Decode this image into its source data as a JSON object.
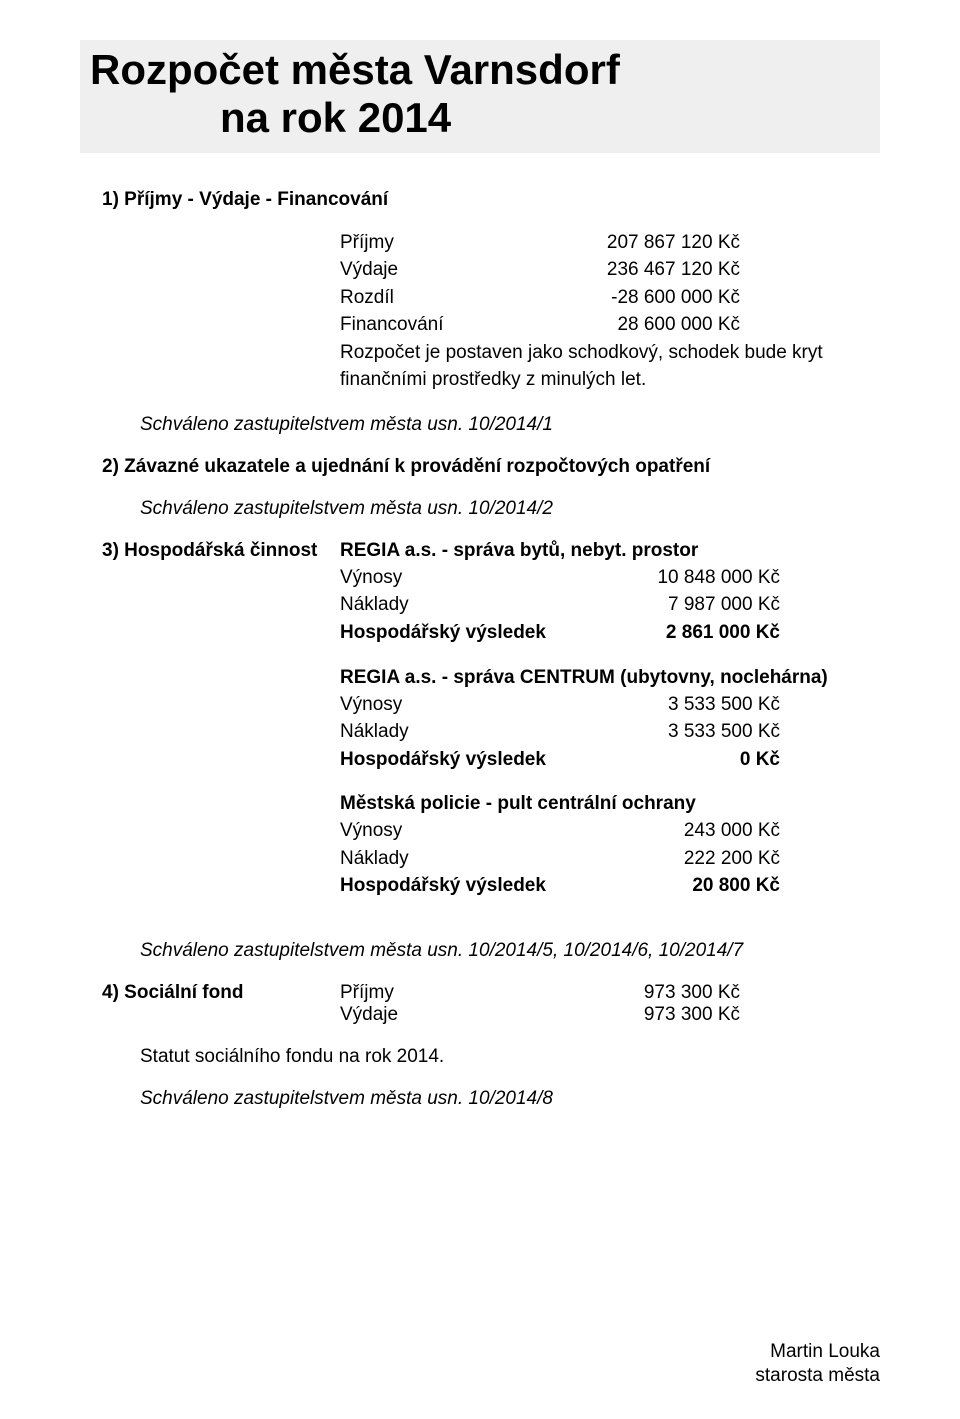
{
  "title": {
    "line1": "Rozpočet města Varnsdorf",
    "line2": "na rok 2014"
  },
  "section1": {
    "heading": "1)  Příjmy - Výdaje - Financování",
    "rows": [
      {
        "label": "Příjmy",
        "value": "207 867 120 Kč"
      },
      {
        "label": "Výdaje",
        "value": "236 467 120 Kč"
      },
      {
        "label": "Rozdíl",
        "value": "-28 600 000 Kč"
      },
      {
        "label": "Financování",
        "value": "28 600 000 Kč"
      }
    ],
    "note_line1": "Rozpočet je postaven jako schodkový, schodek bude kryt",
    "note_line2": "finančními  prostředky z minulých let.",
    "approval": "Schváleno zastupitelstvem města usn. 10/2014/1"
  },
  "section2": {
    "heading": "2)  Závazné ukazatele a ujednání k provádění rozpočtových opatření",
    "approval": "Schváleno zastupitelstvem města usn. 10/2014/2"
  },
  "section3": {
    "heading_left": "3)  Hospodářská činnost",
    "blocks": [
      {
        "title": "REGIA a.s. - správa bytů, nebyt. prostor",
        "rows": [
          {
            "label": "Výnosy",
            "value": "10 848 000 Kč",
            "bold": false
          },
          {
            "label": "Náklady",
            "value": "7 987 000 Kč",
            "bold": false
          },
          {
            "label": "Hospodářský výsledek",
            "value": "2 861 000 Kč",
            "bold": true
          }
        ]
      },
      {
        "title": "REGIA a.s. - správa CENTRUM (ubytovny, noclehárna)",
        "rows": [
          {
            "label": "Výnosy",
            "value": "3 533 500 Kč",
            "bold": false
          },
          {
            "label": "Náklady",
            "value": "3 533 500 Kč",
            "bold": false
          },
          {
            "label": "Hospodářský výsledek",
            "value": "0 Kč",
            "bold": true
          }
        ]
      },
      {
        "title": "Městská policie - pult centrální ochrany",
        "rows": [
          {
            "label": "Výnosy",
            "value": "243 000 Kč",
            "bold": false
          },
          {
            "label": "Náklady",
            "value": "222 200 Kč",
            "bold": false
          },
          {
            "label": "Hospodářský výsledek",
            "value": "20 800 Kč",
            "bold": true
          }
        ]
      }
    ],
    "approval": "Schváleno zastupitelstvem města usn. 10/2014/5, 10/2014/6, 10/2014/7"
  },
  "section4": {
    "heading_left": "4)  Sociální fond",
    "rows": [
      {
        "label": "Příjmy",
        "value": "973 300 Kč"
      },
      {
        "label": "Výdaje",
        "value": "973 300 Kč"
      }
    ],
    "note": "Statut sociálního fondu na rok 2014.",
    "approval": "Schváleno zastupitelstvem města usn. 10/2014/8"
  },
  "signature": {
    "name": "Martin Louka",
    "role": "starosta města"
  },
  "colors": {
    "page_bg": "#ffffff",
    "title_bg": "#efefef",
    "text": "#000000"
  },
  "typography": {
    "font_family": "Arial",
    "title_size_pt": 32,
    "body_size_pt": 14
  }
}
